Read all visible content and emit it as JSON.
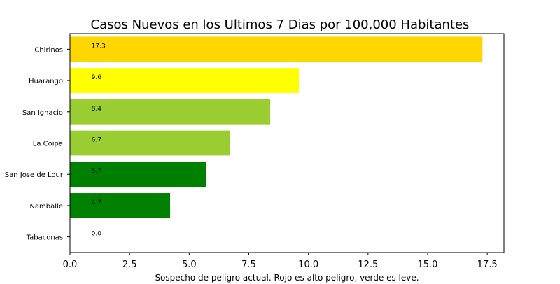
{
  "chart_data": {
    "type": "bar",
    "orientation": "horizontal",
    "title": "Casos Nuevos en los Ultimos 7 Dias por 100,000 Habitantes",
    "xlabel": "Sospecho de peligro actual. Rojo es alto peligro, verde es leve.",
    "ylabel": "",
    "categories": [
      "Chirinos",
      "Huarango",
      "San Ignacio",
      "La Coipa",
      "San Jose de Lour",
      "Namballe",
      "Tabaconas"
    ],
    "values": [
      17.3,
      9.6,
      8.4,
      6.7,
      5.7,
      4.2,
      0.0
    ],
    "data_labels": [
      "17.3",
      "9.6",
      "8.4",
      "6.7",
      "5.7",
      "4.2",
      "0.0"
    ],
    "colors": [
      "#FFD700",
      "#FFFF00",
      "#9ACD32",
      "#9ACD32",
      "#008000",
      "#008000",
      "#008000"
    ],
    "xlim": [
      0,
      18.2
    ],
    "xticks": [
      0,
      2.5,
      5,
      7.5,
      10,
      12.5,
      15,
      17.5
    ],
    "xtick_labels": [
      "0.0",
      "2.5",
      "5.0",
      "7.5",
      "10.0",
      "12.5",
      "15.0",
      "17.5"
    ],
    "grid": false,
    "legend": "none"
  }
}
